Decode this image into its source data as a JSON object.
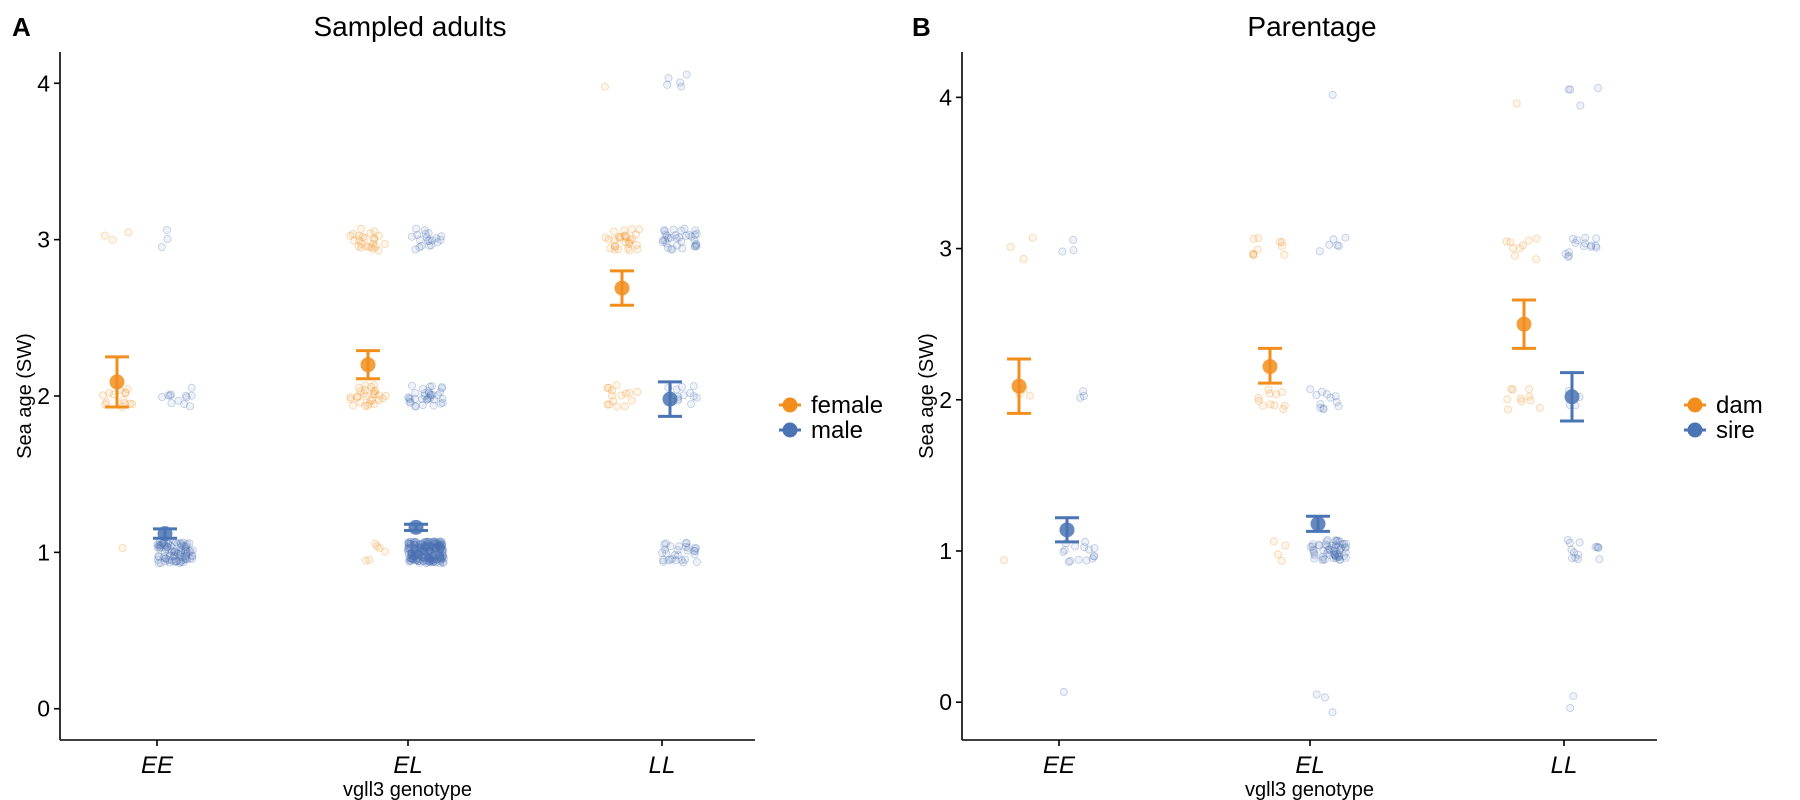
{
  "chart_data": [
    {
      "type": "scatter",
      "panel_label": "A",
      "title": "Sampled adults",
      "xlabel": "vgll3 genotype",
      "ylabel": "Sea age (SW)",
      "categories": [
        "EE",
        "EL",
        "LL"
      ],
      "ylim": [
        -0.2,
        4.2
      ],
      "yticks": [
        0,
        1,
        2,
        3,
        4
      ],
      "grid": false,
      "legend_position": "right",
      "series": [
        {
          "name": "female",
          "color": "#F28E1C",
          "means": [
            2.09,
            2.2,
            2.69
          ],
          "err_low": [
            1.93,
            2.11,
            2.58
          ],
          "err_high": [
            2.25,
            2.29,
            2.8
          ],
          "raw_counts": [
            {
              "0": 0,
              "1": 1,
              "2": 14,
              "3": 3,
              "4": 0
            },
            {
              "0": 0,
              "1": 6,
              "2": 28,
              "3": 24,
              "4": 0
            },
            {
              "0": 0,
              "1": 0,
              "2": 15,
              "3": 28,
              "4": 1
            }
          ]
        },
        {
          "name": "male",
          "color": "#4A74B4",
          "means": [
            1.12,
            1.16,
            1.98
          ],
          "err_low": [
            1.09,
            1.14,
            1.87
          ],
          "err_high": [
            1.15,
            1.18,
            2.09
          ],
          "raw_counts": [
            {
              "0": 0,
              "1": 90,
              "2": 12,
              "3": 3,
              "4": 0
            },
            {
              "0": 0,
              "1": 230,
              "2": 35,
              "3": 20,
              "4": 0
            },
            {
              "0": 0,
              "1": 30,
              "2": 14,
              "3": 34,
              "4": 5
            }
          ]
        }
      ]
    },
    {
      "type": "scatter",
      "panel_label": "B",
      "title": "Parentage",
      "xlabel": "vgll3 genotype",
      "ylabel": "Sea age (SW)",
      "categories": [
        "EE",
        "EL",
        "LL"
      ],
      "ylim": [
        -0.25,
        4.3
      ],
      "yticks": [
        0,
        1,
        2,
        3,
        4
      ],
      "grid": false,
      "legend_position": "right",
      "series": [
        {
          "name": "dam",
          "color": "#F28E1C",
          "means": [
            2.09,
            2.22,
            2.5
          ],
          "err_low": [
            1.91,
            2.11,
            2.34
          ],
          "err_high": [
            2.27,
            2.34,
            2.66
          ],
          "raw_counts": [
            {
              "0": 0,
              "1": 1,
              "2": 3,
              "3": 3,
              "4": 0
            },
            {
              "0": 0,
              "1": 4,
              "2": 11,
              "3": 10,
              "4": 0
            },
            {
              "0": 0,
              "1": 0,
              "2": 10,
              "3": 9,
              "4": 1
            }
          ]
        },
        {
          "name": "sire",
          "color": "#4A74B4",
          "means": [
            1.14,
            1.18,
            2.02
          ],
          "err_low": [
            1.06,
            1.13,
            1.86
          ],
          "err_high": [
            1.22,
            1.23,
            2.18
          ],
          "raw_counts": [
            {
              "0": 1,
              "1": 15,
              "2": 3,
              "3": 3,
              "4": 0
            },
            {
              "0": 3,
              "1": 60,
              "2": 12,
              "3": 6,
              "4": 1
            },
            {
              "0": 2,
              "1": 14,
              "2": 4,
              "3": 15,
              "4": 4
            }
          ]
        }
      ]
    }
  ]
}
